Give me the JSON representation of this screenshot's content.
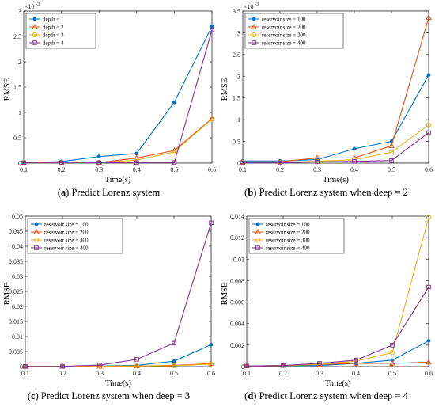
{
  "chart_data": [
    {
      "type": "line",
      "panel_letter": "a",
      "caption": "Predict Lorenz system",
      "xlabel": "Time(s)",
      "ylabel": "RMSE",
      "exponent_label": "×10",
      "exponent_power": "-3",
      "x": [
        0.1,
        0.2,
        0.3,
        0.4,
        0.5,
        0.6
      ],
      "xlim": [
        0.1,
        0.6
      ],
      "ylim": [
        0,
        0.003
      ],
      "yticks": [
        0,
        0.0005,
        0.001,
        0.0015,
        0.002,
        0.0025,
        0.003
      ],
      "ytick_labels": [
        "0",
        "0.5",
        "1",
        "1.5",
        "2",
        "2.5",
        "3"
      ],
      "xtick_labels": [
        "0.1",
        "0.2",
        "0.3",
        "0.4",
        "0.5",
        "0.6"
      ],
      "legend_position": "top-left",
      "grid": false,
      "series": [
        {
          "name": "depth = 1",
          "color": "#0072BD",
          "marker": "dot",
          "values": [
            1e-05,
            3e-05,
            0.00013,
            0.00019,
            0.0012,
            0.0027
          ]
        },
        {
          "name": "depth = 2",
          "color": "#D95319",
          "marker": "triangle",
          "values": [
            1e-05,
            1e-05,
            1e-05,
            0.0001,
            0.00025,
            0.00088
          ]
        },
        {
          "name": "depth = 3",
          "color": "#EDB120",
          "marker": "circle",
          "values": [
            1e-05,
            1e-05,
            1e-05,
            6e-05,
            0.00022,
            0.00087
          ]
        },
        {
          "name": "depth = 4",
          "color": "#7E2F8E",
          "marker": "square",
          "values": [
            1e-05,
            1e-05,
            1e-05,
            1e-05,
            1e-05,
            0.00263
          ]
        }
      ]
    },
    {
      "type": "line",
      "panel_letter": "b",
      "caption": "Predict Lorenz system when deep = 2",
      "xlabel": "Time(s)",
      "ylabel": "RMSE",
      "exponent_label": "×10",
      "exponent_power": "-3",
      "x": [
        0.1,
        0.2,
        0.3,
        0.4,
        0.5,
        0.6
      ],
      "xlim": [
        0.1,
        0.6
      ],
      "ylim": [
        0,
        0.0035
      ],
      "yticks": [
        0,
        0.0005,
        0.001,
        0.0015,
        0.002,
        0.0025,
        0.003,
        0.0035
      ],
      "ytick_labels": [
        "0",
        "0.5",
        "1",
        "1.5",
        "2",
        "2.5",
        "3",
        "3.5"
      ],
      "xtick_labels": [
        "0.1",
        "0.2",
        "0.3",
        "0.4",
        "0.5",
        "0.6"
      ],
      "legend_position": "top-left",
      "grid": false,
      "series": [
        {
          "name": "reservoir size = 100",
          "color": "#0072BD",
          "marker": "dot",
          "values": [
            5e-05,
            5e-05,
            8e-05,
            0.00033,
            0.0005,
            0.00203
          ]
        },
        {
          "name": "reservoir size = 200",
          "color": "#D95319",
          "marker": "triangle",
          "values": [
            3e-05,
            3e-05,
            0.00012,
            0.00012,
            0.0004,
            0.00335
          ]
        },
        {
          "name": "reservoir size = 300",
          "color": "#EDB120",
          "marker": "circle",
          "values": [
            2e-05,
            2e-05,
            4e-05,
            8e-05,
            0.00025,
            0.00088
          ]
        },
        {
          "name": "reservoir size = 400",
          "color": "#7E2F8E",
          "marker": "square",
          "values": [
            1e-05,
            1e-05,
            3e-05,
            4e-05,
            6e-05,
            0.0007
          ]
        }
      ]
    },
    {
      "type": "line",
      "panel_letter": "c",
      "caption": "Predict Lorenz system when deep = 3",
      "xlabel": "Time(s)",
      "ylabel": "RMSE",
      "exponent_label": "",
      "exponent_power": "",
      "x": [
        0.1,
        0.2,
        0.3,
        0.4,
        0.5,
        0.6
      ],
      "xlim": [
        0.1,
        0.6
      ],
      "ylim": [
        0,
        0.05
      ],
      "yticks": [
        0,
        0.005,
        0.01,
        0.015,
        0.02,
        0.025,
        0.03,
        0.035,
        0.04,
        0.045,
        0.05
      ],
      "ytick_labels": [
        "0",
        "0.005",
        "0.01",
        "0.015",
        "0.02",
        "0.025",
        "0.03",
        "0.035",
        "0.04",
        "0.045",
        "0.05"
      ],
      "xtick_labels": [
        "0.1",
        "0.2",
        "0.3",
        "0.4",
        "0.5",
        "0.6"
      ],
      "legend_position": "top-left",
      "grid": false,
      "series": [
        {
          "name": "reservoir size = 100",
          "color": "#0072BD",
          "marker": "dot",
          "values": [
            5e-05,
            0.0001,
            0.0002,
            0.0004,
            0.0018,
            0.0073
          ]
        },
        {
          "name": "reservoir size = 200",
          "color": "#D95319",
          "marker": "triangle",
          "values": [
            5e-05,
            5e-05,
            0.0001,
            0.0002,
            0.0004,
            0.001
          ]
        },
        {
          "name": "reservoir size = 300",
          "color": "#EDB120",
          "marker": "circle",
          "values": [
            5e-05,
            5e-05,
            0.0001,
            0.0002,
            0.0003,
            0.0008
          ]
        },
        {
          "name": "reservoir size = 400",
          "color": "#7E2F8E",
          "marker": "square",
          "values": [
            5e-05,
            0.0001,
            0.0005,
            0.0024,
            0.0078,
            0.0478
          ]
        }
      ]
    },
    {
      "type": "line",
      "panel_letter": "d",
      "caption": "Predict Lorenz system when deep = 4",
      "xlabel": "Time(s)",
      "ylabel": "RMSE",
      "exponent_label": "",
      "exponent_power": "",
      "x": [
        0.1,
        0.2,
        0.3,
        0.4,
        0.5,
        0.6
      ],
      "xlim": [
        0.1,
        0.6
      ],
      "ylim": [
        0,
        0.014
      ],
      "yticks": [
        0,
        0.002,
        0.004,
        0.006,
        0.008,
        0.01,
        0.012,
        0.014
      ],
      "ytick_labels": [
        "0",
        "0.002",
        "0.004",
        "0.006",
        "0.008",
        "0.01",
        "0.012",
        "0.014"
      ],
      "xtick_labels": [
        "0.1",
        "0.2",
        "0.3",
        "0.4",
        "0.5",
        "0.6"
      ],
      "legend_position": "top-left",
      "grid": false,
      "series": [
        {
          "name": "reservoir size = 100",
          "color": "#0072BD",
          "marker": "dot",
          "values": [
            5e-05,
            0.0001,
            0.0001,
            0.0003,
            0.0006,
            0.0024
          ]
        },
        {
          "name": "reservoir size = 200",
          "color": "#D95319",
          "marker": "triangle",
          "values": [
            5e-05,
            0.0001,
            0.0002,
            0.0003,
            0.0003,
            0.0004
          ]
        },
        {
          "name": "reservoir size = 300",
          "color": "#EDB120",
          "marker": "circle",
          "values": [
            5e-05,
            0.0001,
            0.0002,
            0.0005,
            0.0013,
            0.0139
          ]
        },
        {
          "name": "reservoir size = 400",
          "color": "#7E2F8E",
          "marker": "square",
          "values": [
            5e-05,
            0.0001,
            0.0003,
            0.0006,
            0.002,
            0.0074
          ]
        }
      ]
    }
  ]
}
